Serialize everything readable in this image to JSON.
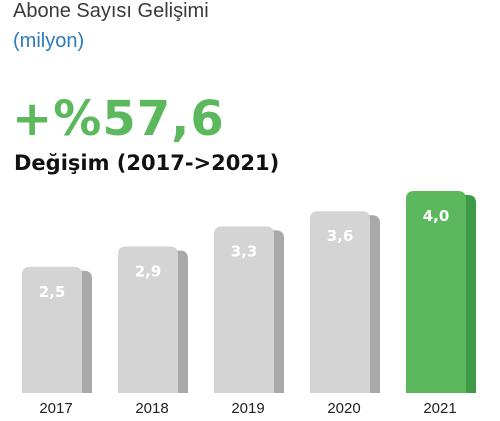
{
  "header": {
    "title": "Abone Sayısı Gelişimi",
    "subtitle": "(milyon)"
  },
  "highlight": {
    "value": "+%57,6",
    "label": "Değişim (2017->2021)"
  },
  "colors": {
    "bar": "#d4d4d4",
    "bar_shadow": "#a9a9a9",
    "highlight_bar": "#5cb85c",
    "highlight_shadow": "#3f9a47",
    "highlight_text": "#5cb85c",
    "value_label": "#ffffff",
    "axis_label": "#222222"
  },
  "chart_data": {
    "type": "bar",
    "categories": [
      "2017",
      "2018",
      "2019",
      "2020",
      "2021"
    ],
    "values": [
      2.5,
      2.9,
      3.3,
      3.6,
      4.0
    ],
    "value_labels": [
      "2,5",
      "2,9",
      "3,3",
      "3,6",
      "4,0"
    ],
    "highlight_index": 4,
    "title": "Abone Sayısı Gelişimi",
    "subtitle": "(milyon)",
    "xlabel": "",
    "ylabel": "",
    "grid": false
  }
}
